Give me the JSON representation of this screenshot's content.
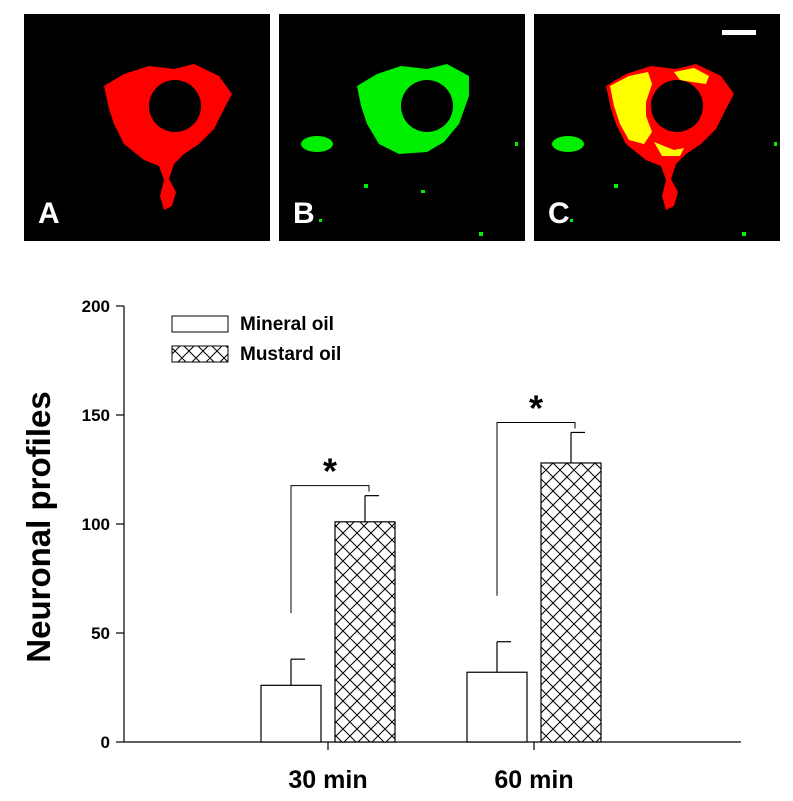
{
  "panels": [
    {
      "letter": "A",
      "channel": "red"
    },
    {
      "letter": "B",
      "channel": "green"
    },
    {
      "letter": "C",
      "channel": "merge"
    }
  ],
  "colors": {
    "red": "#ff0000",
    "green": "#00ee00",
    "yellow": "#ffff00",
    "background": "#000000"
  },
  "chart_data": {
    "type": "bar",
    "categories": [
      "30 min",
      "60 min"
    ],
    "ylabel": "Neuronal profiles",
    "xlabel": "",
    "ylim": [
      0,
      200
    ],
    "yticks": [
      0,
      50,
      100,
      150,
      200
    ],
    "legend_position": "top-left",
    "series": [
      {
        "name": "Mineral oil",
        "fill": "open",
        "values": [
          26,
          32
        ],
        "errors": [
          12,
          14
        ]
      },
      {
        "name": "Mustard oil",
        "fill": "crosshatch",
        "values": [
          101,
          128
        ],
        "errors": [
          12,
          14
        ]
      }
    ],
    "significance": [
      {
        "category": "30 min",
        "label": "*"
      },
      {
        "category": "60 min",
        "label": "*"
      }
    ]
  }
}
